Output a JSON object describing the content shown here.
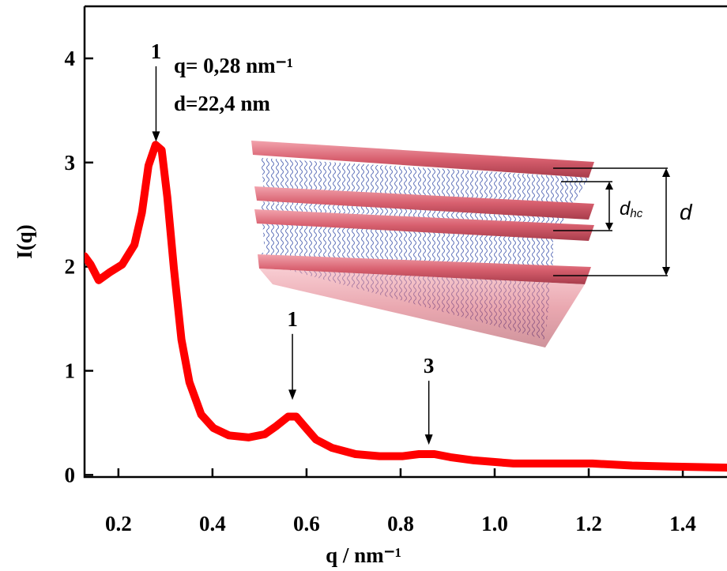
{
  "chart_data": {
    "type": "line",
    "x_label": "q / nm⁻¹",
    "y_label": "I(q)",
    "xlim": [
      0.128,
      1.494
    ],
    "ylim": [
      -0.02,
      4.5
    ],
    "xticks": [
      0.2,
      0.4,
      0.6,
      0.8,
      {
        "value": 1,
        "label": "1.0"
      },
      1.2,
      1.4
    ],
    "yticks": [
      0,
      1,
      2,
      3,
      4
    ],
    "grid": false,
    "series": [
      {
        "color": "#ff0000",
        "x": [
          0.128,
          0.141,
          0.158,
          0.183,
          0.208,
          0.234,
          0.25,
          0.264,
          0.279,
          0.292,
          0.304,
          0.318,
          0.334,
          0.351,
          0.376,
          0.402,
          0.435,
          0.477,
          0.511,
          0.536,
          0.561,
          0.578,
          0.595,
          0.62,
          0.654,
          0.704,
          0.755,
          0.805,
          0.839,
          0.872,
          0.906,
          0.956,
          1.04,
          1.124,
          1.208,
          1.292,
          1.376,
          1.494
        ],
        "values": [
          2.1,
          2.02,
          1.87,
          1.95,
          2.02,
          2.21,
          2.52,
          2.97,
          3.17,
          3.12,
          2.67,
          1.98,
          1.3,
          0.89,
          0.58,
          0.45,
          0.38,
          0.36,
          0.39,
          0.47,
          0.56,
          0.56,
          0.47,
          0.34,
          0.26,
          0.2,
          0.18,
          0.18,
          0.2,
          0.2,
          0.17,
          0.14,
          0.11,
          0.11,
          0.11,
          0.09,
          0.08,
          0.07
        ]
      }
    ],
    "annotations": [
      {
        "text": "1",
        "x": 0.28,
        "y": 3.2,
        "label_y": 4.0
      },
      {
        "text": "q= 0,28 nm⁻¹"
      },
      {
        "text": "d=22,4 nm"
      },
      {
        "text": "1",
        "x": 0.57,
        "y": 0.72,
        "label_y": 1.43
      },
      {
        "text": "3",
        "x": 0.86,
        "y": 0.29,
        "label_y": 0.98
      }
    ],
    "inset": {
      "hc_label": {
        "text": "d",
        "subscript": "hc"
      },
      "d_label": "d"
    }
  }
}
